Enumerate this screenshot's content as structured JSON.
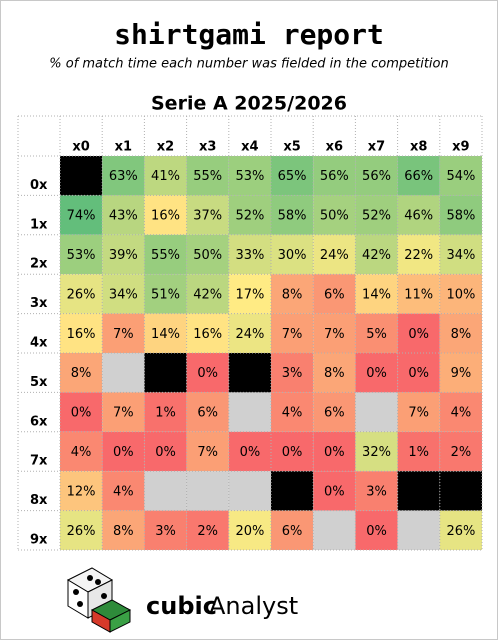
{
  "chart_data": {
    "type": "heatmap",
    "title": "shirtgami report",
    "subtitle": "% of match time each number was fielded in the competition",
    "heading": "Serie A 2025/2026",
    "x_categories": [
      "x0",
      "x1",
      "x2",
      "x3",
      "x4",
      "x5",
      "x6",
      "x7",
      "x8",
      "x9"
    ],
    "y_categories": [
      "0x",
      "1x",
      "2x",
      "3x",
      "4x",
      "5x",
      "6x",
      "7x",
      "8x",
      "9x"
    ],
    "values": [
      [
        null,
        63,
        41,
        55,
        53,
        65,
        56,
        56,
        66,
        54
      ],
      [
        74,
        43,
        16,
        37,
        52,
        58,
        50,
        52,
        46,
        58
      ],
      [
        53,
        39,
        55,
        50,
        33,
        30,
        24,
        42,
        22,
        34
      ],
      [
        26,
        34,
        51,
        42,
        17,
        8,
        6,
        14,
        11,
        10
      ],
      [
        16,
        7,
        14,
        16,
        24,
        7,
        7,
        5,
        0,
        8
      ],
      [
        8,
        null,
        null,
        0,
        null,
        3,
        8,
        0,
        0,
        9
      ],
      [
        0,
        7,
        1,
        6,
        null,
        4,
        6,
        null,
        7,
        4
      ],
      [
        4,
        0,
        0,
        7,
        0,
        0,
        0,
        32,
        1,
        2
      ],
      [
        12,
        4,
        null,
        null,
        null,
        null,
        0,
        3,
        null,
        null
      ],
      [
        26,
        8,
        3,
        2,
        20,
        6,
        null,
        0,
        null,
        26
      ]
    ],
    "value_labels": [
      [
        null,
        "63%",
        "41%",
        "55%",
        "53%",
        "65%",
        "56%",
        "56%",
        "66%",
        "54%"
      ],
      [
        "74%",
        "43%",
        "16%",
        "37%",
        "52%",
        "58%",
        "50%",
        "52%",
        "46%",
        "58%"
      ],
      [
        "53%",
        "39%",
        "55%",
        "50%",
        "33%",
        "30%",
        "24%",
        "42%",
        "22%",
        "34%"
      ],
      [
        "26%",
        "34%",
        "51%",
        "42%",
        "17%",
        "8%",
        "6%",
        "14%",
        "11%",
        "10%"
      ],
      [
        "16%",
        "7%",
        "14%",
        "16%",
        "24%",
        "7%",
        "7%",
        "5%",
        "0%",
        "8%"
      ],
      [
        "8%",
        null,
        null,
        "0%",
        null,
        "3%",
        "8%",
        "0%",
        "0%",
        "9%"
      ],
      [
        "0%",
        "7%",
        "1%",
        "6%",
        null,
        "4%",
        "6%",
        null,
        "7%",
        "4%"
      ],
      [
        "4%",
        "0%",
        "0%",
        "7%",
        "0%",
        "0%",
        "0%",
        "32%",
        "1%",
        "2%"
      ],
      [
        "12%",
        "4%",
        null,
        null,
        null,
        null,
        "0%",
        "3%",
        null,
        null
      ],
      [
        "26%",
        "8%",
        "3%",
        "2%",
        "20%",
        "6%",
        null,
        "0%",
        null,
        "26%"
      ]
    ],
    "color_scale": [
      [
        0,
        "#f8696b"
      ],
      [
        17,
        "#ffeb84"
      ],
      [
        74,
        "#63be7b"
      ]
    ],
    "missing_color": "#d0d0d0",
    "blocked_color": "#000000",
    "blocked_cells": [
      [
        0,
        0
      ],
      [
        5,
        2
      ],
      [
        5,
        4
      ],
      [
        8,
        5
      ],
      [
        8,
        8
      ],
      [
        8,
        9
      ]
    ]
  },
  "footer": {
    "brand_bold": "cubic",
    "brand_regular": "Analyst"
  }
}
